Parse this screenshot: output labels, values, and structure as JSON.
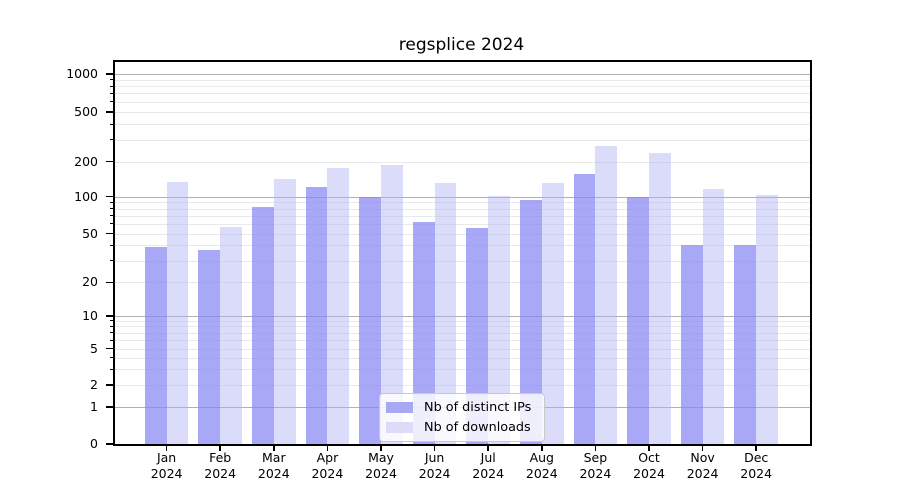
{
  "figure_title": "regsplice 2024",
  "chart_data": {
    "type": "bar",
    "title": "regsplice 2024",
    "categories": [
      "Jan",
      "Feb",
      "Mar",
      "Apr",
      "May",
      "Jun",
      "Jul",
      "Aug",
      "Sep",
      "Oct",
      "Nov",
      "Dec"
    ],
    "year": "2024",
    "series": [
      {
        "name": "Nb of distinct IPs",
        "color": "#a8a8f5",
        "fill": "rgba(135,135,242,0.72)",
        "values": [
          39,
          37,
          83,
          120,
          100,
          62,
          55,
          94,
          158,
          100,
          40,
          40
        ]
      },
      {
        "name": "Nb of downloads",
        "color": "#dcdcfa",
        "fill": "rgba(175,175,245,0.45)",
        "values": [
          135,
          57,
          142,
          178,
          189,
          130,
          101,
          130,
          265,
          235,
          116,
          104
        ]
      }
    ],
    "yscale": "symlog",
    "y_ticks": [
      0,
      1,
      2,
      5,
      10,
      20,
      50,
      100,
      200,
      500,
      1000
    ],
    "y_tick_labels": [
      "0",
      "1",
      "2",
      "5",
      "10",
      "20",
      "50",
      "100",
      "200",
      "500",
      "1000"
    ],
    "y_major_gridlines": [
      1,
      10,
      100,
      1000
    ],
    "y_minor_gridlines": [
      2,
      3,
      4,
      5,
      6,
      7,
      8,
      9,
      20,
      30,
      40,
      50,
      60,
      70,
      80,
      90,
      200,
      300,
      400,
      500,
      600,
      700,
      800,
      900
    ],
    "ylim": [
      0,
      1300
    ],
    "grid": "on",
    "legend_position": "lower center inside",
    "major_grid_color": "#b0b0b0",
    "minor_grid_color": "#e9e9e9",
    "axis_color": "#000000"
  }
}
